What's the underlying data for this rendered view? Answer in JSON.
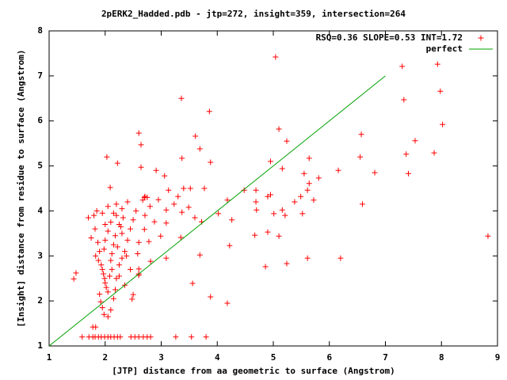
{
  "chart_data": {
    "type": "scatter",
    "title": "2pERK2_Hadded.pdb - jtp=272, insight=359, intersection=264",
    "x_label": "[JTP] distance from aa geometric to surface (Angstrom)",
    "y_label": "[Insight] distance from residue to surface (Angstrom)",
    "xlim": [
      1,
      9
    ],
    "ylim": [
      1,
      8
    ],
    "xticks": [
      1,
      2,
      3,
      4,
      5,
      6,
      7,
      8,
      9
    ],
    "yticks": [
      1,
      2,
      3,
      4,
      5,
      6,
      7,
      8
    ],
    "legend": "top right",
    "series": [
      {
        "name": "RSQ=0.36 SLOPE=0.53 INT=1.72",
        "color": "#ff0000",
        "mode": "points",
        "x": [
          1.44,
          1.48,
          1.59,
          1.71,
          1.78,
          1.82,
          1.88,
          1.93,
          1.99,
          2.05,
          2.1,
          2.16,
          2.22,
          2.27,
          2.46,
          2.53,
          2.6,
          2.68,
          2.75,
          2.81,
          3.26,
          3.54,
          3.8,
          1.78,
          1.83,
          5.04,
          7.3,
          7.93,
          7.98,
          7.33,
          8.02,
          3.36,
          3.86,
          5.1,
          2.6,
          2.64,
          3.61,
          3.69,
          2.03,
          2.22,
          2.64,
          3.37,
          3.88,
          2.91,
          3.06,
          2.09,
          5.24,
          5.64,
          6.16,
          4.95,
          5.16,
          5.55,
          5.81,
          6.55,
          6.81,
          7.37,
          7.53,
          7.87,
          7.41,
          6.57,
          8.83,
          6.59,
          6.2,
          4.48,
          4.69,
          4.9,
          4.95,
          4.69,
          4.7,
          5.01,
          5.16,
          5.21,
          5.38,
          5.49,
          5.64,
          5.61,
          5.72,
          5.52,
          5.1,
          4.9,
          4.67,
          5.24,
          4.86,
          5.61,
          4.26,
          4.18,
          4.02,
          4.22,
          4.18,
          3.88,
          3.56,
          3.69,
          3.72,
          3.37,
          3.4,
          3.52,
          3.77,
          3.49,
          3.6,
          3.3,
          3.23,
          3.09,
          3.13,
          2.95,
          2.88,
          3.09,
          2.99,
          3.09,
          3.35,
          2.81,
          2.78,
          2.7,
          2.71,
          2.67,
          2.71,
          2.6,
          2.6,
          2.5,
          2.48,
          1.7,
          1.75,
          1.8,
          1.85,
          1.82,
          1.87,
          1.9,
          1.83,
          1.88,
          1.93,
          1.95,
          1.97,
          1.99,
          2.0,
          2.02,
          2.05,
          1.9,
          1.92,
          1.95,
          1.98,
          2.05,
          2.1,
          2.15,
          2.18,
          2.2,
          2.25,
          2.3,
          2.35,
          2.4,
          2.45,
          2.5,
          2.55,
          2.6,
          2.58,
          2.3,
          2.25,
          2.2,
          2.1,
          2.05,
          2.0,
          1.98,
          2.12,
          2.15,
          2.18,
          2.22,
          2.28,
          2.32,
          2.38,
          2.12,
          2.08,
          2.25,
          2.35,
          2.45,
          2.05,
          2.2,
          2.3,
          2.4,
          2.1,
          1.95,
          2.0,
          2.15,
          2.6,
          2.7,
          2.75,
          2.8
        ],
        "values": [
          2.49,
          2.62,
          1.2,
          1.2,
          1.2,
          1.2,
          1.2,
          1.2,
          1.2,
          1.2,
          1.2,
          1.2,
          1.2,
          1.2,
          1.2,
          1.2,
          1.2,
          1.2,
          1.2,
          1.2,
          1.2,
          1.2,
          1.2,
          1.42,
          1.42,
          7.42,
          7.21,
          7.26,
          6.66,
          6.47,
          5.92,
          6.5,
          6.21,
          5.82,
          5.73,
          5.47,
          5.66,
          5.38,
          5.2,
          5.06,
          4.97,
          5.17,
          5.08,
          4.9,
          4.78,
          4.52,
          5.55,
          5.17,
          4.9,
          5.1,
          4.94,
          4.83,
          4.73,
          5.2,
          4.85,
          5.26,
          5.56,
          5.29,
          4.83,
          5.7,
          3.44,
          4.15,
          2.95,
          4.46,
          4.46,
          4.32,
          4.36,
          4.2,
          4.02,
          3.94,
          4.02,
          3.9,
          4.2,
          4.32,
          4.61,
          4.46,
          4.24,
          3.94,
          3.44,
          3.53,
          3.46,
          2.83,
          2.76,
          2.95,
          3.8,
          4.24,
          3.94,
          3.23,
          1.95,
          2.09,
          2.39,
          3.02,
          3.76,
          3.97,
          4.5,
          4.5,
          4.5,
          4.08,
          3.85,
          4.32,
          4.15,
          4.02,
          4.46,
          4.25,
          3.76,
          3.73,
          3.44,
          2.95,
          3.41,
          2.88,
          3.32,
          3.59,
          3.9,
          4.24,
          4.32,
          2.71,
          2.57,
          2.14,
          2.04,
          3.85,
          3.4,
          3.9,
          4.0,
          3.6,
          3.3,
          3.1,
          3.0,
          2.9,
          2.8,
          2.7,
          2.6,
          2.5,
          2.4,
          2.3,
          2.2,
          2.15,
          1.98,
          1.85,
          1.7,
          1.65,
          1.8,
          2.05,
          2.25,
          2.5,
          2.8,
          2.95,
          3.1,
          3.35,
          3.6,
          3.8,
          4.0,
          3.3,
          3.05,
          3.5,
          3.7,
          3.9,
          3.75,
          3.55,
          3.35,
          3.15,
          3.05,
          3.25,
          3.45,
          3.2,
          3.65,
          3.85,
          3.0,
          2.7,
          2.55,
          2.55,
          2.35,
          2.7,
          4.1,
          4.15,
          4.05,
          4.2,
          2.9,
          3.95,
          3.7,
          3.95,
          2.6,
          4.3,
          4.3,
          4.1
        ]
      },
      {
        "name": "perfect",
        "color": "#00a000",
        "mode": "line",
        "x": [
          1,
          7
        ],
        "values": [
          1,
          7
        ]
      }
    ]
  }
}
